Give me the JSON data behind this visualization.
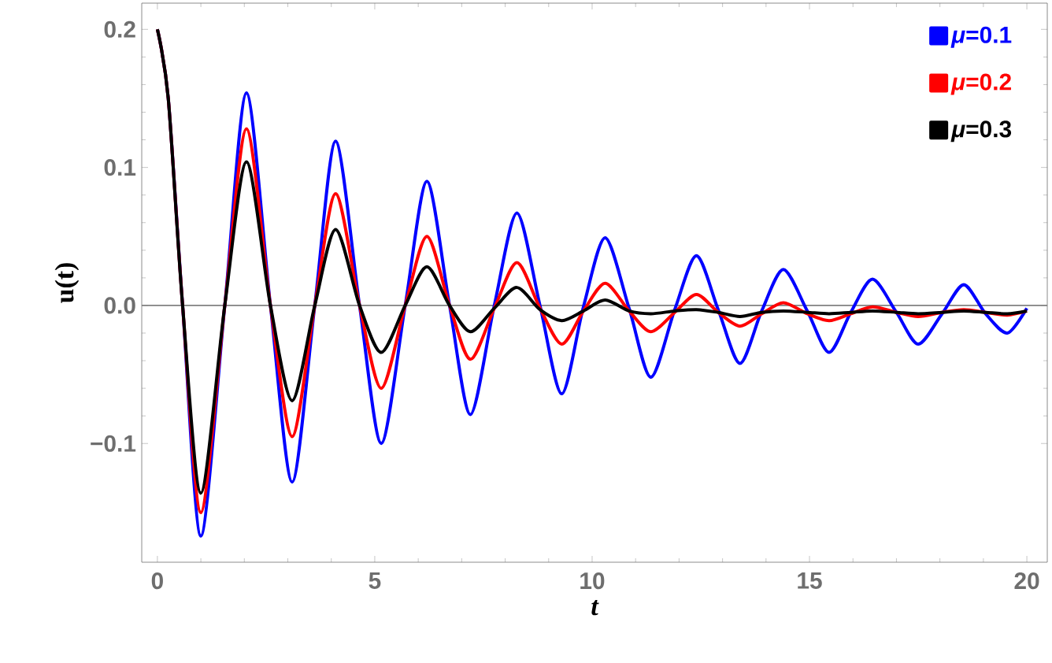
{
  "chart_data": {
    "type": "line",
    "xlabel": "t",
    "ylabel": "u(t)",
    "x": [
      0,
      0.25,
      0.58,
      1.0,
      1.55,
      2.05,
      2.6,
      3.1,
      3.62,
      4.1,
      4.65,
      5.15,
      5.7,
      6.2,
      6.72,
      7.2,
      7.75,
      8.27,
      8.8,
      9.3,
      9.8,
      10.3,
      10.85,
      11.35,
      11.9,
      12.4,
      12.9,
      13.4,
      13.9,
      14.4,
      14.95,
      15.45,
      15.95,
      16.45,
      17.0,
      17.5,
      18.05,
      18.55,
      19.05,
      19.55,
      20
    ],
    "series": [
      {
        "name": "*μ*=0.1",
        "color": "#0000ff",
        "values": [
          0.2,
          0.15,
          0,
          -0.167,
          0,
          0.154,
          0,
          -0.128,
          0,
          0.119,
          0,
          -0.1,
          0,
          0.09,
          0,
          -0.079,
          0,
          0.067,
          0,
          -0.064,
          -0.001,
          0.049,
          -0.002,
          -0.052,
          -0.003,
          0.036,
          -0.003,
          -0.042,
          -0.004,
          0.026,
          -0.004,
          -0.034,
          -0.005,
          0.019,
          -0.005,
          -0.028,
          -0.006,
          0.015,
          -0.006,
          -0.02,
          -0.002
        ]
      },
      {
        "name": "*μ*=0.2",
        "color": "#ff0000",
        "values": [
          0.2,
          0.15,
          0,
          -0.15,
          0,
          0.128,
          0,
          -0.095,
          0,
          0.081,
          0,
          -0.06,
          0,
          0.05,
          0,
          -0.039,
          -0.002,
          0.031,
          -0.002,
          -0.028,
          -0.004,
          0.016,
          -0.004,
          -0.019,
          -0.005,
          0.008,
          -0.005,
          -0.015,
          -0.006,
          0.002,
          -0.006,
          -0.011,
          -0.006,
          -0.001,
          -0.005,
          -0.008,
          -0.005,
          -0.003,
          -0.005,
          -0.007,
          -0.004
        ]
      },
      {
        "name": "*μ*=0.3",
        "color": "#000000",
        "values": [
          0.2,
          0.15,
          0,
          -0.136,
          0,
          0.104,
          0,
          -0.069,
          0,
          0.055,
          0,
          -0.034,
          0,
          0.028,
          0,
          -0.019,
          -0.002,
          0.013,
          -0.003,
          -0.011,
          -0.004,
          0.004,
          -0.004,
          -0.006,
          -0.004,
          -0.003,
          -0.005,
          -0.008,
          -0.005,
          -0.004,
          -0.005,
          -0.006,
          -0.005,
          -0.004,
          -0.005,
          -0.006,
          -0.005,
          -0.004,
          -0.005,
          -0.006,
          -0.004
        ]
      }
    ],
    "xlim": [
      -0.36,
      20.47
    ],
    "ylim": [
      -0.186,
      0.219
    ],
    "xticks": [
      0,
      5,
      10,
      15,
      20
    ],
    "yticks": [
      {
        "value": -0.1,
        "label": "−0.1"
      },
      {
        "value": 0,
        "label": "0.0"
      },
      0.1,
      0.2
    ],
    "ref_lines": [
      {
        "axis": "y",
        "value": 0,
        "color": "#808080"
      }
    ],
    "legend": "top right"
  }
}
